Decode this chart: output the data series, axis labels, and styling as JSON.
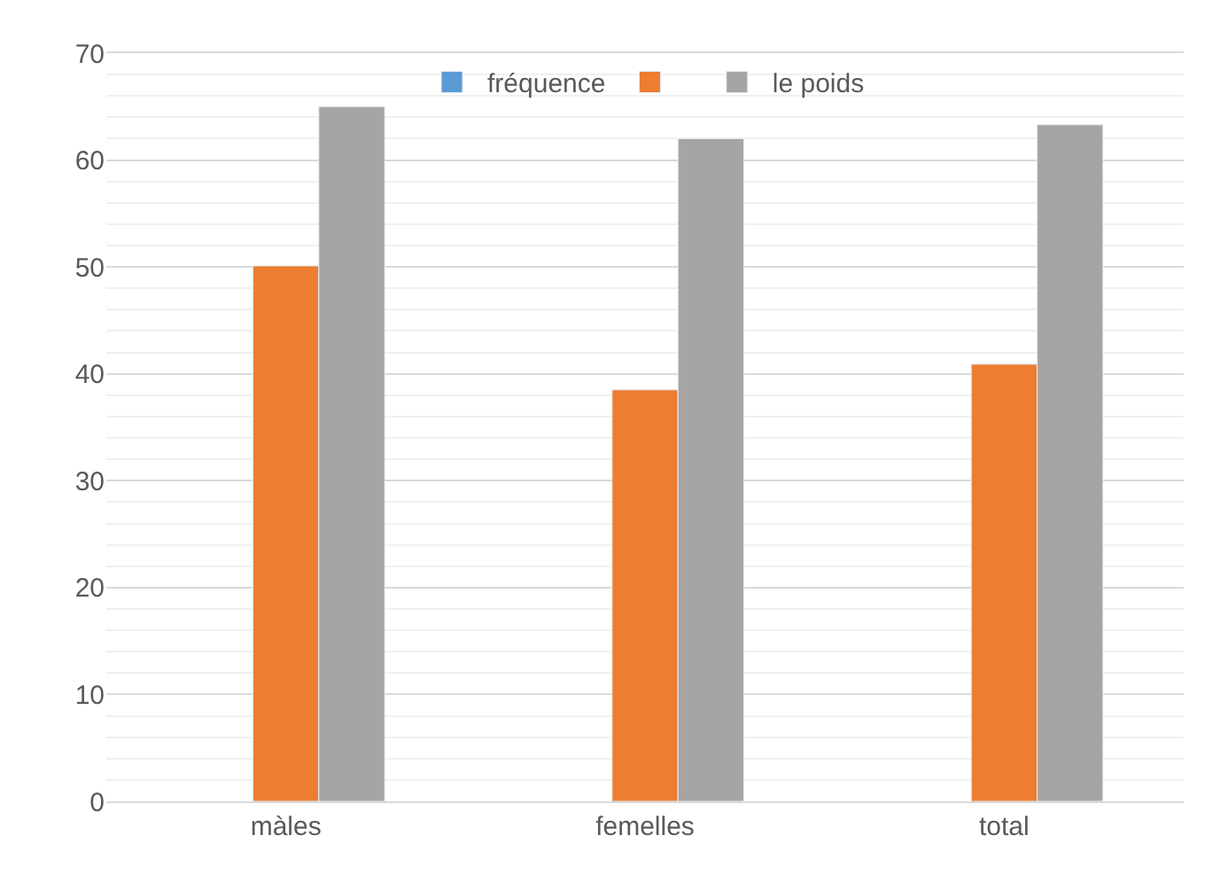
{
  "chart_data": {
    "type": "bar",
    "categories": [
      "màles",
      "femelles",
      "total"
    ],
    "series": [
      {
        "name": "fréquence",
        "color": "#5b9bd5",
        "values": [
          null,
          null,
          null
        ]
      },
      {
        "color": "#ed7d31",
        "values": [
          50.1,
          38.5,
          40.9
        ]
      },
      {
        "name": "le poids",
        "color": "#a5a5a5",
        "values": [
          65,
          62,
          63.3
        ]
      }
    ],
    "ylim": [
      0,
      70
    ],
    "yticks": [
      0,
      10,
      20,
      30,
      40,
      50,
      60,
      70
    ],
    "grid": "y",
    "legend": "top"
  }
}
